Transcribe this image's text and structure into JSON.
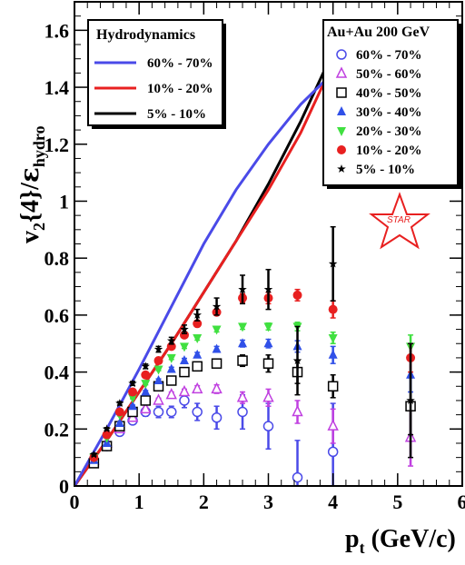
{
  "chart_data": {
    "type": "scatter",
    "xlim": [
      0,
      6
    ],
    "ylim": [
      0,
      1.7
    ],
    "x_ticks": [
      "0",
      "1",
      "2",
      "3",
      "4",
      "5",
      "6"
    ],
    "y_ticks": [
      "0",
      "0.2",
      "0.4",
      "0.6",
      "0.8",
      "1",
      "1.2",
      "1.4",
      "1.6"
    ],
    "xlabel": {
      "main": "p",
      "sub": "t",
      "unit": " (GeV/c)"
    },
    "ylabel": {
      "v": "v",
      "v_sub": "2",
      "mid": "{4}/",
      "eps": "ε",
      "eps_sub": "hydro"
    },
    "logo_text": "STAR",
    "hydro_legend": {
      "title": "Hydrodynamics",
      "position": "top-left",
      "entries": [
        {
          "label": "60% - 70%",
          "color": "#4a4ae8"
        },
        {
          "label": "10% - 20%",
          "color": "#e82020"
        },
        {
          "label": "5% - 10%",
          "color": "#000000"
        }
      ]
    },
    "data_legend": {
      "title": "Au+Au 200 GeV",
      "position": "top-right"
    },
    "hydro_curves": [
      {
        "color": "#000000",
        "x": [
          0,
          0.5,
          1,
          1.5,
          2,
          2.5,
          3,
          3.5,
          3.95
        ],
        "y": [
          0,
          0.16,
          0.33,
          0.5,
          0.68,
          0.86,
          1.06,
          1.28,
          1.5
        ]
      },
      {
        "color": "#e82020",
        "x": [
          0,
          0.5,
          1,
          1.5,
          2,
          2.5,
          3,
          3.5,
          3.95
        ],
        "y": [
          0,
          0.16,
          0.33,
          0.5,
          0.68,
          0.86,
          1.04,
          1.24,
          1.46
        ]
      },
      {
        "color": "#4a4ae8",
        "x": [
          0,
          0.5,
          1,
          1.5,
          2,
          2.5,
          3,
          3.5,
          3.95
        ],
        "y": [
          0,
          0.2,
          0.41,
          0.63,
          0.85,
          1.04,
          1.2,
          1.34,
          1.44
        ]
      }
    ],
    "series": [
      {
        "name": "60% - 70%",
        "marker": "open-circle",
        "color": "#4a4ae8",
        "x": [
          0.3,
          0.5,
          0.7,
          0.9,
          1.1,
          1.3,
          1.5,
          1.7,
          1.9,
          2.2,
          2.6,
          3.0,
          3.45,
          4.0
        ],
        "y": [
          0.09,
          0.14,
          0.19,
          0.23,
          0.26,
          0.26,
          0.26,
          0.3,
          0.26,
          0.24,
          0.26,
          0.21,
          0.03,
          0.12
        ],
        "err": [
          0.01,
          0.01,
          0.01,
          0.01,
          0.015,
          0.02,
          0.02,
          0.025,
          0.03,
          0.04,
          0.06,
          0.08,
          0.13,
          0.17
        ]
      },
      {
        "name": "50% - 60%",
        "marker": "open-triangle",
        "color": "#c040e0",
        "x": [
          0.3,
          0.5,
          0.7,
          0.9,
          1.1,
          1.3,
          1.5,
          1.7,
          1.9,
          2.2,
          2.6,
          3.0,
          3.45,
          4.0,
          5.2
        ],
        "y": [
          0.09,
          0.15,
          0.2,
          0.24,
          0.27,
          0.3,
          0.32,
          0.33,
          0.34,
          0.34,
          0.31,
          0.31,
          0.26,
          0.21,
          0.17
        ],
        "err": [
          0.005,
          0.005,
          0.005,
          0.005,
          0.007,
          0.008,
          0.01,
          0.01,
          0.012,
          0.015,
          0.02,
          0.03,
          0.04,
          0.06,
          0.1
        ]
      },
      {
        "name": "40% - 50%",
        "marker": "open-square",
        "color": "#000000",
        "x": [
          0.3,
          0.5,
          0.7,
          0.9,
          1.1,
          1.3,
          1.5,
          1.7,
          1.9,
          2.2,
          2.6,
          3.0,
          3.45,
          4.0,
          5.2
        ],
        "y": [
          0.08,
          0.14,
          0.21,
          0.26,
          0.3,
          0.35,
          0.37,
          0.4,
          0.42,
          0.43,
          0.44,
          0.43,
          0.4,
          0.35,
          0.28
        ],
        "err": [
          0.004,
          0.004,
          0.004,
          0.005,
          0.006,
          0.007,
          0.008,
          0.009,
          0.01,
          0.012,
          0.02,
          0.03,
          0.04,
          0.04,
          0.1
        ]
      },
      {
        "name": "30% - 40%",
        "marker": "filled-triangle",
        "color": "#3050e8",
        "x": [
          0.3,
          0.5,
          0.7,
          0.9,
          1.1,
          1.3,
          1.5,
          1.7,
          1.9,
          2.2,
          2.6,
          3.0,
          3.45,
          4.0,
          5.2
        ],
        "y": [
          0.09,
          0.15,
          0.22,
          0.28,
          0.33,
          0.37,
          0.41,
          0.44,
          0.46,
          0.48,
          0.5,
          0.5,
          0.49,
          0.46,
          0.39
        ],
        "err": [
          0.003,
          0.003,
          0.004,
          0.004,
          0.005,
          0.006,
          0.007,
          0.008,
          0.009,
          0.01,
          0.012,
          0.015,
          0.02,
          0.03,
          0.06
        ]
      },
      {
        "name": "20% - 30%",
        "marker": "filled-down-triangle",
        "color": "#40e040",
        "x": [
          0.3,
          0.5,
          0.7,
          0.9,
          1.1,
          1.3,
          1.5,
          1.7,
          1.9,
          2.2,
          2.6,
          3.0,
          3.45,
          4.0,
          5.2
        ],
        "y": [
          0.1,
          0.17,
          0.25,
          0.31,
          0.36,
          0.41,
          0.45,
          0.49,
          0.52,
          0.55,
          0.56,
          0.56,
          0.56,
          0.52,
          0.49
        ],
        "err": [
          0.003,
          0.003,
          0.004,
          0.004,
          0.005,
          0.005,
          0.006,
          0.007,
          0.008,
          0.009,
          0.01,
          0.012,
          0.015,
          0.02,
          0.04
        ]
      },
      {
        "name": "10% - 20%",
        "marker": "filled-circle",
        "color": "#e82020",
        "x": [
          0.3,
          0.5,
          0.7,
          0.9,
          1.1,
          1.3,
          1.5,
          1.7,
          1.9,
          2.2,
          2.6,
          3.0,
          3.45,
          4.0,
          5.2
        ],
        "y": [
          0.1,
          0.18,
          0.26,
          0.33,
          0.39,
          0.44,
          0.49,
          0.53,
          0.57,
          0.61,
          0.66,
          0.66,
          0.67,
          0.62,
          0.45
        ],
        "err": [
          0.003,
          0.003,
          0.004,
          0.004,
          0.005,
          0.005,
          0.006,
          0.007,
          0.008,
          0.01,
          0.015,
          0.02,
          0.02,
          0.03,
          0.05
        ]
      },
      {
        "name": "5% - 10%",
        "marker": "star",
        "color": "#000000",
        "x": [
          0.3,
          0.5,
          0.7,
          0.9,
          1.1,
          1.3,
          1.5,
          1.7,
          1.9,
          2.2,
          2.6,
          3.0,
          3.45,
          4.0,
          5.2
        ],
        "y": [
          0.11,
          0.2,
          0.29,
          0.36,
          0.42,
          0.48,
          0.51,
          0.55,
          0.6,
          0.63,
          0.69,
          0.69,
          0.44,
          0.78,
          0.3
        ],
        "err": [
          0.005,
          0.005,
          0.006,
          0.007,
          0.008,
          0.01,
          0.012,
          0.015,
          0.02,
          0.03,
          0.05,
          0.07,
          0.12,
          0.13,
          0.2
        ]
      }
    ]
  }
}
